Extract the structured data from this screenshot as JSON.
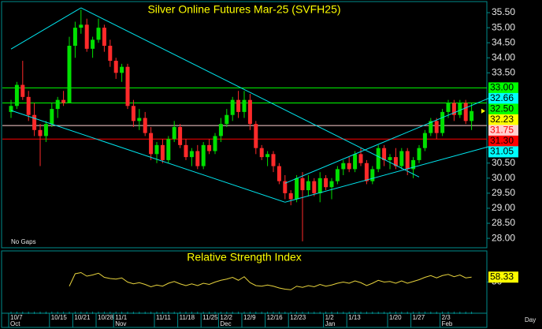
{
  "chart_data": [
    {
      "type": "candlestick",
      "title": "Silver Online Futures Mar-25 (SVFH25)",
      "note": "No Gaps",
      "x_label": "Day",
      "up_color": "#00e000",
      "down_color": "#ff2a2a",
      "categories": [
        "10/7",
        null,
        null,
        null,
        null,
        null,
        null,
        "10/15",
        null,
        null,
        null,
        "10/21",
        null,
        null,
        null,
        "10/28",
        null,
        null,
        "11/1",
        null,
        null,
        null,
        null,
        null,
        null,
        "11/11",
        null,
        null,
        null,
        "11/18",
        null,
        null,
        null,
        "11/25",
        null,
        null,
        "12/2",
        null,
        null,
        null,
        "12/9",
        null,
        null,
        null,
        "12/16",
        null,
        null,
        null,
        "12/23",
        null,
        null,
        null,
        null,
        null,
        "1/2",
        null,
        null,
        null,
        "1/13",
        null,
        null,
        null,
        null,
        null,
        null,
        "1/20",
        null,
        null,
        null,
        "1/27",
        null,
        null,
        null,
        null,
        "2/3",
        null,
        null,
        null,
        null,
        null
      ],
      "month_labels": [
        "Oct",
        null,
        null,
        null,
        null,
        null,
        null,
        null,
        null,
        null,
        null,
        null,
        null,
        null,
        null,
        null,
        null,
        null,
        "Nov",
        null,
        null,
        null,
        null,
        null,
        null,
        null,
        null,
        null,
        null,
        null,
        null,
        null,
        null,
        null,
        null,
        null,
        "Dec",
        null,
        null,
        null,
        null,
        null,
        null,
        null,
        null,
        null,
        null,
        null,
        null,
        null,
        null,
        null,
        null,
        null,
        "Jan",
        null,
        null,
        null,
        null,
        null,
        null,
        null,
        null,
        null,
        null,
        null,
        null,
        null,
        null,
        null,
        null,
        null,
        null,
        null,
        "Feb",
        null,
        null,
        null,
        null,
        null
      ],
      "open": [
        32.2,
        32.4,
        33.1,
        32.7,
        32.1,
        31.6,
        31.4,
        31.8,
        32.3,
        32.6,
        32.5,
        34.4,
        35.0,
        35.1,
        34.3,
        34.6,
        35.0,
        34.4,
        33.9,
        33.5,
        33.7,
        32.4,
        31.9,
        32.0,
        31.5,
        30.8,
        31.1,
        30.6,
        31.3,
        31.7,
        31.1,
        30.7,
        30.9,
        30.4,
        31.1,
        30.9,
        31.4,
        31.8,
        32.1,
        32.6,
        32.2,
        32.6,
        31.8,
        31.0,
        30.7,
        30.8,
        30.4,
        29.9,
        29.5,
        29.3,
        30.0,
        29.6,
        29.9,
        29.5,
        30.0,
        29.7,
        29.9,
        30.3,
        30.5,
        30.3,
        30.8,
        30.5,
        29.9,
        30.3,
        31.0,
        30.6,
        30.7,
        30.4,
        30.9,
        30.3,
        30.6,
        31.0,
        31.5,
        31.9,
        31.5,
        32.2,
        32.5,
        32.1,
        32.5,
        31.9
      ],
      "high": [
        32.6,
        33.2,
        33.9,
        32.9,
        32.5,
        31.8,
        31.9,
        32.5,
        32.7,
        32.9,
        34.7,
        35.2,
        35.6,
        35.3,
        34.7,
        35.3,
        35.1,
        34.6,
        34.0,
        33.8,
        33.8,
        32.6,
        32.3,
        32.2,
        31.7,
        31.2,
        31.3,
        31.4,
        31.9,
        31.8,
        31.3,
        31.0,
        31.1,
        31.2,
        31.3,
        31.5,
        32.0,
        32.3,
        32.7,
        32.9,
        32.9,
        32.8,
        31.9,
        31.1,
        30.9,
        30.9,
        30.5,
        30.1,
        29.6,
        30.1,
        30.2,
        30.1,
        30.0,
        30.2,
        30.1,
        30.0,
        30.4,
        30.6,
        30.7,
        30.9,
        31.0,
        30.6,
        30.4,
        31.1,
        31.1,
        30.8,
        31.0,
        31.0,
        31.0,
        30.7,
        31.1,
        31.6,
        32.0,
        32.0,
        32.3,
        32.6,
        32.6,
        32.6,
        32.6,
        32.5
      ],
      "low": [
        32.0,
        32.3,
        32.6,
        31.9,
        31.4,
        30.4,
        31.2,
        31.7,
        32.0,
        32.4,
        32.5,
        34.0,
        34.8,
        34.2,
        34.0,
        34.5,
        34.2,
        33.7,
        33.3,
        33.2,
        32.3,
        31.7,
        31.6,
        31.4,
        30.6,
        30.5,
        30.5,
        30.5,
        31.2,
        31.0,
        30.6,
        30.4,
        30.3,
        30.3,
        30.8,
        30.8,
        31.2,
        31.7,
        31.9,
        32.0,
        32.0,
        31.6,
        30.8,
        30.6,
        30.4,
        30.2,
        29.8,
        29.3,
        29.1,
        29.2,
        27.9,
        29.4,
        29.4,
        29.2,
        29.6,
        29.3,
        29.8,
        30.1,
        30.2,
        30.2,
        30.4,
        29.8,
        29.8,
        30.2,
        30.4,
        30.3,
        30.3,
        30.3,
        30.1,
        30.0,
        30.5,
        30.9,
        31.4,
        31.3,
        31.4,
        32.0,
        31.9,
        32.0,
        31.8,
        31.6
      ],
      "close": [
        32.4,
        33.1,
        32.7,
        32.1,
        31.6,
        31.4,
        31.8,
        32.3,
        32.6,
        32.5,
        34.4,
        35.0,
        35.1,
        34.3,
        34.6,
        35.0,
        34.4,
        33.9,
        33.5,
        33.7,
        32.4,
        31.9,
        32.0,
        31.5,
        30.8,
        31.1,
        30.6,
        31.3,
        31.7,
        31.1,
        30.7,
        30.9,
        30.4,
        31.1,
        30.9,
        31.4,
        31.8,
        32.1,
        32.6,
        32.2,
        32.6,
        31.8,
        31.0,
        30.7,
        30.8,
        30.4,
        29.9,
        29.5,
        29.3,
        30.0,
        29.6,
        29.9,
        29.5,
        30.0,
        29.7,
        29.9,
        30.3,
        30.5,
        30.3,
        30.8,
        30.5,
        29.9,
        30.3,
        31.0,
        30.6,
        30.7,
        30.4,
        30.9,
        30.3,
        30.6,
        31.0,
        31.5,
        31.9,
        31.5,
        32.2,
        32.5,
        32.1,
        32.5,
        31.9,
        32.23
      ],
      "ylim": [
        27.74,
        35.79
      ],
      "yticks": [
        {
          "value": 35.5,
          "label": "35.50"
        },
        {
          "value": 35,
          "label": "35.00"
        },
        {
          "value": 34.5,
          "label": "34.50"
        },
        {
          "value": 34,
          "label": "34.00"
        },
        {
          "value": 33.5,
          "label": "33.50"
        },
        {
          "value": 30.5,
          "label": "30.50"
        },
        {
          "value": 30,
          "label": "30.00"
        },
        {
          "value": 29.5,
          "label": "29.50"
        },
        {
          "value": 29,
          "label": "29.00"
        },
        {
          "value": 28.5,
          "label": "28.50"
        },
        {
          "value": 28,
          "label": "28.00"
        }
      ],
      "levels": [
        {
          "value": 33,
          "label": "33.00",
          "color": "#00ff00",
          "text_color": "#000000",
          "line": true
        },
        {
          "value": 32.66,
          "label": "32.66",
          "color": "#00ffff",
          "text_color": "#000000",
          "line": false
        },
        {
          "value": 32.5,
          "label": "32.50",
          "color": "#00ff00",
          "text_color": "#000000",
          "line": true
        },
        {
          "value": 32.23,
          "label": "32.23",
          "color": "#ffff00",
          "text_color": "#000000",
          "line": false
        },
        {
          "value": 31.75,
          "label": "31.75",
          "color": "#ffd0d0",
          "text_color": "#ff0000",
          "line": true
        },
        {
          "value": 31.3,
          "label": "31.30",
          "color": "#ff0000",
          "text_color": "#000000",
          "line": true
        },
        {
          "value": 31.05,
          "label": "31.05",
          "color": "#00ffff",
          "text_color": "#000000",
          "line": false
        }
      ],
      "trendlines": [
        {
          "x": [
            0,
            12
          ],
          "y": [
            34.29,
            35.66
          ],
          "color": "#00e5ee"
        },
        {
          "x": [
            12,
            70
          ],
          "y": [
            35.66,
            30.04
          ],
          "color": "#00e5ee"
        },
        {
          "x": [
            0,
            47
          ],
          "y": [
            32.25,
            29.2
          ],
          "color": "#00e5ee"
        },
        {
          "x": [
            47,
            82
          ],
          "y": [
            29.2,
            31.05
          ],
          "color": "#00e5ee"
        },
        {
          "x": [
            47,
            82
          ],
          "y": [
            29.83,
            32.66
          ],
          "color": "#00e5ee"
        }
      ]
    },
    {
      "type": "line",
      "title": "Relative Strength Index",
      "color": "#e6d23c",
      "values": [
        null,
        null,
        null,
        null,
        null,
        null,
        null,
        null,
        null,
        null,
        43,
        64,
        66,
        60,
        62,
        65,
        58,
        56,
        55,
        57,
        50,
        47,
        49,
        46,
        42,
        45,
        43,
        48,
        51,
        47,
        44,
        47,
        44,
        48,
        46,
        50,
        53,
        55,
        58,
        53,
        59,
        49,
        44,
        43,
        45,
        43,
        40,
        38,
        37,
        43,
        41,
        44,
        42,
        46,
        43,
        45,
        48,
        50,
        48,
        52,
        49,
        44,
        48,
        53,
        50,
        51,
        48,
        52,
        48,
        51,
        54,
        58,
        61,
        57,
        61,
        63,
        59,
        62,
        57,
        58.33
      ],
      "ylim": [
        0,
        100
      ],
      "yticks": [
        50
      ],
      "levels": [
        {
          "value": 58.33,
          "label": "58.33",
          "color": "#ffff00",
          "text_color": "#000000",
          "line": false
        }
      ]
    }
  ]
}
